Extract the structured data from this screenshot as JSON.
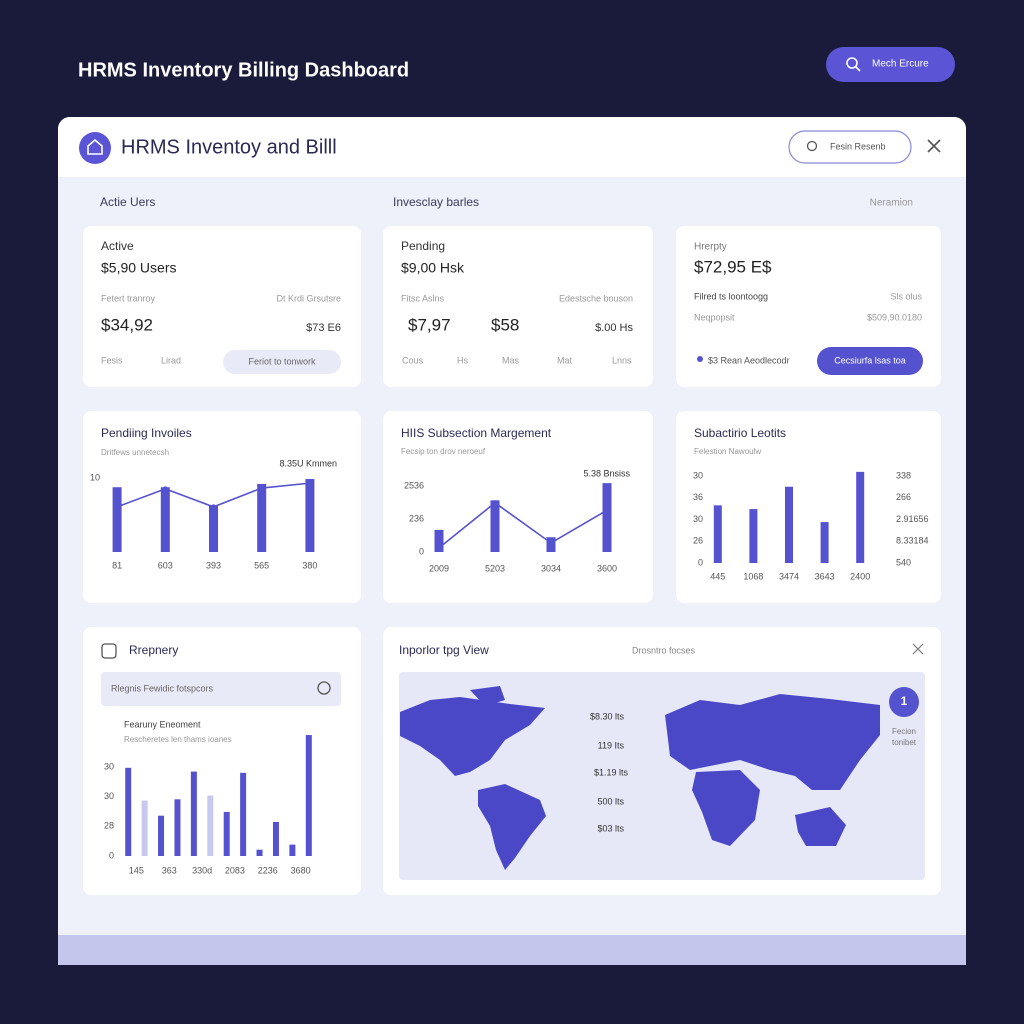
{
  "header": {
    "title": "HRMS Inventory Billing Dashboard",
    "button": "Mech Ercure"
  },
  "window": {
    "title": "HRMS Inventoy and Billl",
    "search": "Fesin Resenb"
  },
  "sections": [
    "Actie Uers",
    "Invesclay barles",
    "Neramion"
  ],
  "stat_cards": [
    {
      "label": "Active",
      "amount": "$5,90 Users",
      "note_left": "Fetert tranroy",
      "note_right": "Dt Krdi Grsutsre",
      "totals": [
        "$34,92"
      ],
      "total_right": "$73 E6",
      "footer": [
        "Fesis",
        "Lirad"
      ],
      "button": "Feriot to tonwork"
    },
    {
      "label": "Pending",
      "amount": "$9,00 Hsk",
      "note_left": "Fitsc Aslns",
      "note_right": "Edestsche bouson",
      "totals": [
        "$7,97",
        "$58"
      ],
      "total_right": "$.00 Hs",
      "footer": [
        "Cous",
        "Hs",
        "Mas",
        "Mat",
        "Lnns"
      ]
    },
    {
      "label": "Hrerpty",
      "amount": "$72,95 E$",
      "note_left": "Filred ts loontoogg",
      "note_right": "Sls olus",
      "note2_left": "Neqpopsit",
      "note2_right": "$509,90.0180",
      "footer": [
        "$3 Rean Aeodlecodr"
      ],
      "button": "Cecsiurfa lsas toa"
    }
  ],
  "charts": [
    {
      "type": "bar",
      "title": "Pendiing Invoiles",
      "subtitle": "Dritfews unnetecsh",
      "annotation": "8.35U Kmmen",
      "categories": [
        "81",
        "603",
        "393",
        "565",
        "380"
      ],
      "bars": [
        79,
        79,
        57,
        83,
        89
      ],
      "line": [
        55,
        77,
        55,
        78,
        84
      ],
      "ylim": [
        0,
        100
      ],
      "ylabels": [
        "10"
      ],
      "color": "#5552d0"
    },
    {
      "type": "bar",
      "title": "HIIS Subsection Margement",
      "subtitle": "Fecsip ton drov neroeuf",
      "annotation": "5.38 Bnsiss",
      "categories": [
        "2009",
        "5203",
        "3034",
        "3600"
      ],
      "bars": [
        27,
        63,
        18,
        84
      ],
      "line": [
        5,
        60,
        11,
        51
      ],
      "ylim": [
        0,
        100
      ],
      "ylabels": [
        "0",
        "236",
        "2536"
      ],
      "color": "#5552d0"
    },
    {
      "type": "bar",
      "title": "Subactirio Leotits",
      "subtitle": "Felestion Nawoulw",
      "categories": [
        "445",
        "1068",
        "3474",
        "3643",
        "2400"
      ],
      "bars": [
        62,
        58,
        82,
        44,
        98
      ],
      "ylim": [
        0,
        100
      ],
      "ylabels": [
        "0",
        "26",
        "30",
        "36",
        "30"
      ],
      "ylabels_right": [
        "540",
        "8.33184",
        "2.91656",
        "266",
        "338"
      ],
      "color": "#5552d0"
    },
    {
      "type": "bar",
      "title": "Rrepnery",
      "search": "Rlegnis Fewidic fotspcors",
      "subtitle": "Fearuny Eneoment",
      "subtitle2": "Rescheretes len thams ioanes",
      "categories": [
        "145",
        "363",
        "330d",
        "2083",
        "2236",
        "3680"
      ],
      "bars": [
        70,
        44,
        32,
        45,
        67,
        48,
        35,
        66,
        5,
        27,
        9,
        96
      ],
      "bar_colors": [
        "#5552d0",
        "#c9c8ef",
        "#5552d0",
        "#5552d0",
        "#5552d0",
        "#c9c8ef",
        "#5552d0",
        "#5552d0",
        "#5552d0",
        "#5552d0",
        "#5552d0",
        "#5552d0"
      ],
      "ylim": [
        0,
        100
      ],
      "ylabels": [
        "0",
        "28",
        "30",
        "30"
      ]
    }
  ],
  "map": {
    "title": "Inporlor tpg View",
    "filter": "Drosntro focses",
    "labels": [
      "$8.30 lts",
      "119 Its",
      "$1.19 lts",
      "500 lts",
      "$03 lts"
    ],
    "badge": "1",
    "badge_caption": [
      "Fecion",
      "tonibet"
    ],
    "color": "#4b48c8"
  }
}
